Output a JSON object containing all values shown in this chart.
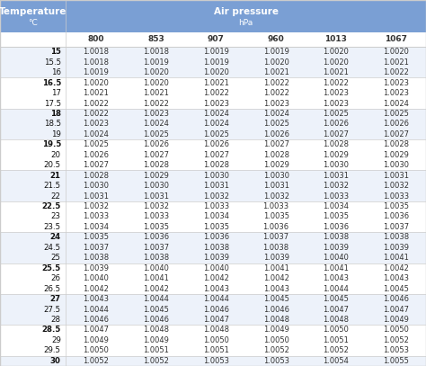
{
  "header_bg": "#7a9fd4",
  "header_text_color": "#ffffff",
  "pressure_cols": [
    "800",
    "853",
    "907",
    "960",
    "1013",
    "1067"
  ],
  "temp_rows": [
    [
      "15",
      "15.5",
      "16"
    ],
    [
      "16.5",
      "17",
      "17.5"
    ],
    [
      "18",
      "18.5",
      "19"
    ],
    [
      "19.5",
      "20",
      "20.5"
    ],
    [
      "21",
      "21.5",
      "22"
    ],
    [
      "22.5",
      "23",
      "23.5"
    ],
    [
      "24",
      "24.5",
      "25"
    ],
    [
      "25.5",
      "26",
      "26.5"
    ],
    [
      "27",
      "27.5",
      "28"
    ],
    [
      "28.5",
      "29",
      "29.5"
    ],
    [
      "30"
    ]
  ],
  "data": {
    "15": [
      1.0018,
      1.0018,
      1.0019,
      1.0019,
      1.002,
      1.002
    ],
    "15.5": [
      1.0018,
      1.0019,
      1.0019,
      1.002,
      1.002,
      1.0021
    ],
    "16": [
      1.0019,
      1.002,
      1.002,
      1.0021,
      1.0021,
      1.0022
    ],
    "16.5": [
      1.002,
      1.002,
      1.0021,
      1.0022,
      1.0022,
      1.0023
    ],
    "17": [
      1.0021,
      1.0021,
      1.0022,
      1.0022,
      1.0023,
      1.0023
    ],
    "17.5": [
      1.0022,
      1.0022,
      1.0023,
      1.0023,
      1.0023,
      1.0024
    ],
    "18": [
      1.0022,
      1.0023,
      1.0024,
      1.0024,
      1.0025,
      1.0025
    ],
    "18.5": [
      1.0023,
      1.0024,
      1.0024,
      1.0025,
      1.0026,
      1.0026
    ],
    "19": [
      1.0024,
      1.0025,
      1.0025,
      1.0026,
      1.0027,
      1.0027
    ],
    "19.5": [
      1.0025,
      1.0026,
      1.0026,
      1.0027,
      1.0028,
      1.0028
    ],
    "20": [
      1.0026,
      1.0027,
      1.0027,
      1.0028,
      1.0029,
      1.0029
    ],
    "20.5": [
      1.0027,
      1.0028,
      1.0028,
      1.0029,
      1.003,
      1.003
    ],
    "21": [
      1.0028,
      1.0029,
      1.003,
      1.003,
      1.0031,
      1.0031
    ],
    "21.5": [
      1.003,
      1.003,
      1.0031,
      1.0031,
      1.0032,
      1.0032
    ],
    "22": [
      1.0031,
      1.0031,
      1.0032,
      1.0032,
      1.0033,
      1.0033
    ],
    "22.5": [
      1.0032,
      1.0032,
      1.0033,
      1.0033,
      1.0034,
      1.0035
    ],
    "23": [
      1.0033,
      1.0033,
      1.0034,
      1.0035,
      1.0035,
      1.0036
    ],
    "23.5": [
      1.0034,
      1.0035,
      1.0035,
      1.0036,
      1.0036,
      1.0037
    ],
    "24": [
      1.0035,
      1.0036,
      1.0036,
      1.0037,
      1.0038,
      1.0038
    ],
    "24.5": [
      1.0037,
      1.0037,
      1.0038,
      1.0038,
      1.0039,
      1.0039
    ],
    "25": [
      1.0038,
      1.0038,
      1.0039,
      1.0039,
      1.004,
      1.0041
    ],
    "25.5": [
      1.0039,
      1.004,
      1.004,
      1.0041,
      1.0041,
      1.0042
    ],
    "26": [
      1.004,
      1.0041,
      1.0042,
      1.0042,
      1.0043,
      1.0043
    ],
    "26.5": [
      1.0042,
      1.0042,
      1.0043,
      1.0043,
      1.0044,
      1.0045
    ],
    "27": [
      1.0043,
      1.0044,
      1.0044,
      1.0045,
      1.0045,
      1.0046
    ],
    "27.5": [
      1.0044,
      1.0045,
      1.0046,
      1.0046,
      1.0047,
      1.0047
    ],
    "28": [
      1.0046,
      1.0046,
      1.0047,
      1.0048,
      1.0048,
      1.0049
    ],
    "28.5": [
      1.0047,
      1.0048,
      1.0048,
      1.0049,
      1.005,
      1.005
    ],
    "29": [
      1.0049,
      1.0049,
      1.005,
      1.005,
      1.0051,
      1.0052
    ],
    "29.5": [
      1.005,
      1.0051,
      1.0051,
      1.0052,
      1.0052,
      1.0053
    ],
    "30": [
      1.0052,
      1.0052,
      1.0053,
      1.0053,
      1.0054,
      1.0055
    ]
  },
  "odd_group_bg": "#edf2fa",
  "even_group_bg": "#ffffff",
  "line_color": "#cccccc",
  "text_color": "#333333",
  "bold_temp_color": "#111111"
}
